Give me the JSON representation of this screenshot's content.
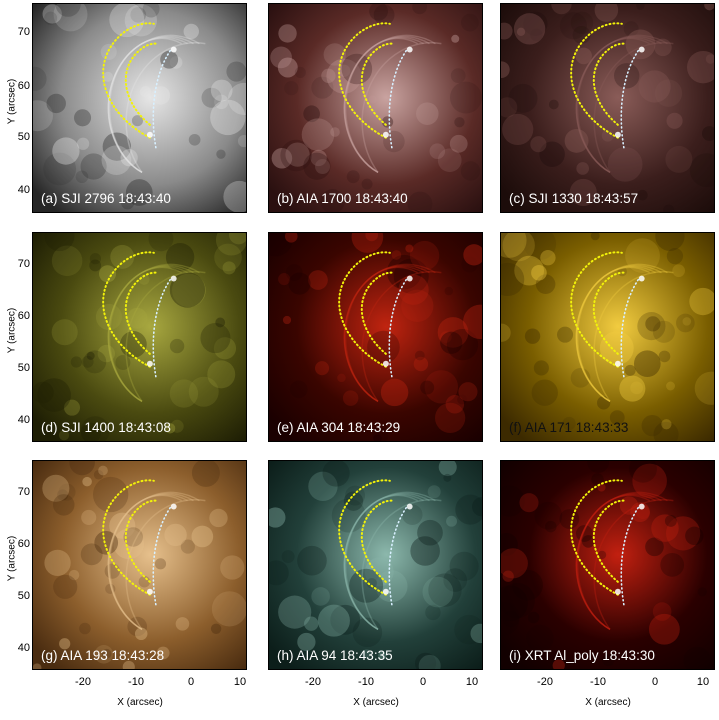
{
  "panels": [
    {
      "label": "(a) SJI 2796 18:43:40",
      "base": "#8a8a8a",
      "light": "#e6e6e6",
      "dark": "#262626",
      "loop": "#f2f20a",
      "loop2": "#d8f0ff",
      "label_dark": false
    },
    {
      "label": "(b) AIA 1700 18:43:40",
      "base": "#5a2a26",
      "light": "#c9a3a0",
      "dark": "#2a1010",
      "loop": "#f2f20a",
      "loop2": "#d8f0ff",
      "label_dark": false
    },
    {
      "label": "(c) SJI 1330 18:43:57",
      "base": "#3b1e1c",
      "light": "#8a5c58",
      "dark": "#1c0c0a",
      "loop": "#f2f20a",
      "loop2": "#d8f0ff",
      "label_dark": false
    },
    {
      "label": "(d) SJI 1400 18:43:08",
      "base": "#4a4a10",
      "light": "#a8a840",
      "dark": "#1e1e04",
      "loop": "#f2f20a",
      "loop2": "#d8f0ff",
      "label_dark": false
    },
    {
      "label": "(e) AIA 304 18:43:29",
      "base": "#3a0500",
      "light": "#c02410",
      "dark": "#1a0000",
      "loop": "#f2f20a",
      "loop2": "#d8f0ff",
      "label_dark": false
    },
    {
      "label": "(f) AIA 171 18:43:33",
      "base": "#7a5e00",
      "light": "#f2cc40",
      "dark": "#3c2a00",
      "loop": "#f2f20a",
      "loop2": "#d8f0ff",
      "label_dark": true
    },
    {
      "label": "(g) AIA 193 18:43:28",
      "base": "#8c5e2c",
      "light": "#e6c08c",
      "dark": "#4a2c10",
      "loop": "#f2f20a",
      "loop2": "#d8f0ff",
      "label_dark": false
    },
    {
      "label": "(h) AIA 94 18:43:35",
      "base": "#22403a",
      "light": "#8cb8ac",
      "dark": "#0c1e1a",
      "loop": "#f2f20a",
      "loop2": "#d8f0ff",
      "label_dark": false
    },
    {
      "label": "(i) XRT Al_poly 18:43:30",
      "base": "#2a0000",
      "light": "#c22010",
      "dark": "#120000",
      "loop": "#f2f20a",
      "loop2": "#d8f0ff",
      "label_dark": false
    }
  ],
  "axes": {
    "ylabel": "Y (arcsec)",
    "xlabel": "X (arcsec)",
    "yticks": [
      "70",
      "60",
      "50",
      "40"
    ],
    "xticks": [
      "-20",
      "-10",
      "0",
      "10"
    ]
  }
}
